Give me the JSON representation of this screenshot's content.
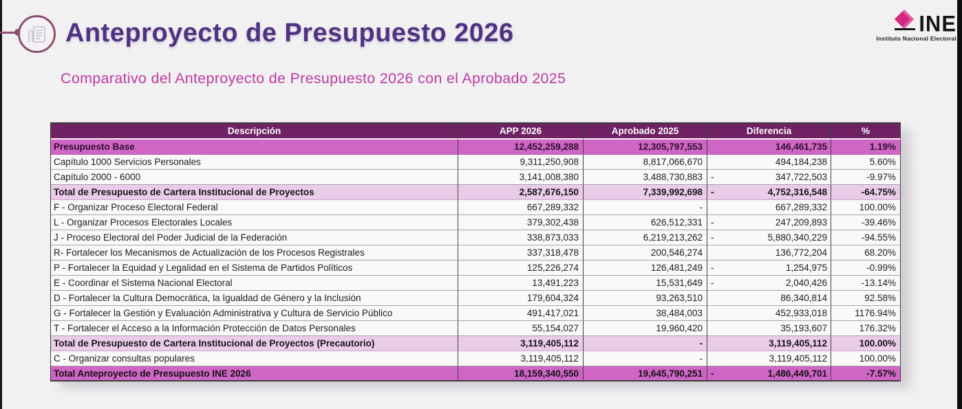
{
  "header": {
    "title": "Anteproyecto de Presupuesto 2026"
  },
  "subtitle": "Comparativo del Anteproyecto de Presupuesto 2026 con el Aprobado 2025",
  "logo": {
    "name": "INE",
    "subtitle": "Instituto Nacional Electoral",
    "diamond_color": "#d6257d"
  },
  "icons": {
    "title_icon": "budget-document-icon",
    "ballot_icon": "ballot-diamond-icon"
  },
  "colors": {
    "title_text": "#4e3182",
    "subtitle_text": "#bd3aa1",
    "table_header_bg": "#6f2063",
    "table_header_text": "#ffffff",
    "row_highlight_orchid": "#d066c6",
    "row_highlight_pink": "#eccdeb",
    "connector_line": "#8d4b71",
    "logo_pink": "#d6257d"
  },
  "table": {
    "columns": [
      "Descripción",
      "APP 2026",
      "Aprobado 2025",
      "Diferencia",
      "%"
    ],
    "rows": [
      {
        "desc": "Presupuesto Base",
        "app": "12,452,259,288",
        "aprobado": "12,305,797,553",
        "dif_sign": "",
        "dif": "146,461,735",
        "pct": "1.19%",
        "style": "orchid"
      },
      {
        "desc": "Capítulo  1000 Servicios Personales",
        "app": "9,311,250,908",
        "aprobado": "8,817,066,670",
        "dif_sign": "",
        "dif": "494,184,238",
        "pct": "5.60%",
        "style": "white"
      },
      {
        "desc": "Capítulo 2000 - 6000",
        "app": "3,141,008,380",
        "aprobado": "3,488,730,883",
        "dif_sign": "-",
        "dif": "347,722,503",
        "pct": "-9.97%",
        "style": "white"
      },
      {
        "desc": "Total de Presupuesto de Cartera Institucional de Proyectos",
        "app": "2,587,676,150",
        "aprobado": "7,339,992,698",
        "dif_sign": "-",
        "dif": "4,752,316,548",
        "pct": "-64.75%",
        "style": "pink"
      },
      {
        "desc": "F - Organizar Proceso Electoral Federal",
        "app": "667,289,332",
        "aprobado": "-",
        "dif_sign": "",
        "dif": "667,289,332",
        "pct": "100.00%",
        "style": "white"
      },
      {
        "desc": "L - Organizar Procesos Electorales Locales",
        "app": "379,302,438",
        "aprobado": "626,512,331",
        "dif_sign": "-",
        "dif": "247,209,893",
        "pct": "-39.46%",
        "style": "white"
      },
      {
        "desc": "J - Proceso Electoral del Poder Judicial de la Federación",
        "app": "338,873,033",
        "aprobado": "6,219,213,262",
        "dif_sign": "-",
        "dif": "5,880,340,229",
        "pct": "-94.55%",
        "style": "white"
      },
      {
        "desc": "R- Fortalecer los Mecanismos de Actualización de los Procesos Registrales",
        "app": "337,318,478",
        "aprobado": "200,546,274",
        "dif_sign": "",
        "dif": "136,772,204",
        "pct": "68.20%",
        "style": "white"
      },
      {
        "desc": "P - Fortalecer la Equidad y Legalidad en el Sistema de Partidos Políticos",
        "app": "125,226,274",
        "aprobado": "126,481,249",
        "dif_sign": "-",
        "dif": "1,254,975",
        "pct": "-0.99%",
        "style": "white"
      },
      {
        "desc": "E - Coordinar el Sistema Nacional Electoral",
        "app": "13,491,223",
        "aprobado": "15,531,649",
        "dif_sign": "-",
        "dif": "2,040,426",
        "pct": "-13.14%",
        "style": "white"
      },
      {
        "desc": "D - Fortalecer la Cultura Democrática, la Igualdad de Género y la Inclusión",
        "app": "179,604,324",
        "aprobado": "93,263,510",
        "dif_sign": "",
        "dif": "86,340,814",
        "pct": "92.58%",
        "style": "white"
      },
      {
        "desc": "G - Fortalecer la Gestión y Evaluación Administrativa y Cultura de Servicio Público",
        "app": "491,417,021",
        "aprobado": "38,484,003",
        "dif_sign": "",
        "dif": "452,933,018",
        "pct": "1176.94%",
        "style": "white"
      },
      {
        "desc": "T - Fortalecer el Acceso a la Información Protección de Datos Personales",
        "app": "55,154,027",
        "aprobado": "19,960,420",
        "dif_sign": "",
        "dif": "35,193,607",
        "pct": "176.32%",
        "style": "white"
      },
      {
        "desc": "Total de Presupuesto de Cartera Institucional de Proyectos (Precautorio)",
        "app": "3,119,405,112",
        "aprobado": "-",
        "dif_sign": "",
        "dif": "3,119,405,112",
        "pct": "100.00%",
        "style": "pink"
      },
      {
        "desc": "C - Organizar consultas populares",
        "app": "3,119,405,112",
        "aprobado": "-",
        "dif_sign": "",
        "dif": "3,119,405,112",
        "pct": "100.00%",
        "style": "white"
      },
      {
        "desc": "Total Anteproyecto de Presupuesto INE 2026",
        "app": "18,159,340,550",
        "aprobado": "19,645,790,251",
        "dif_sign": "-",
        "dif": "1,486,449,701",
        "pct": "-7.57%",
        "style": "orchid"
      }
    ]
  }
}
